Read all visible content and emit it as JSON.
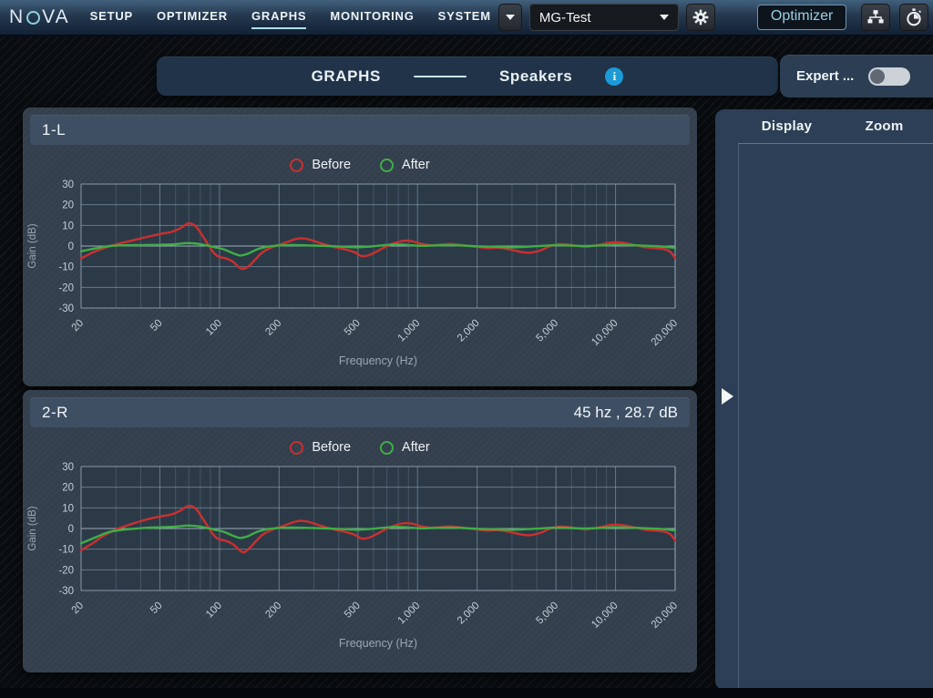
{
  "topbar": {
    "logo": {
      "name": "NOVA",
      "prefix": "N",
      "suffix": "VA"
    },
    "nav": [
      {
        "label": "SETUP",
        "active": false
      },
      {
        "label": "OPTIMIZER",
        "active": false
      },
      {
        "label": "GRAPHS",
        "active": true
      },
      {
        "label": "MONITORING",
        "active": false
      },
      {
        "label": "SYSTEM",
        "active": false
      }
    ],
    "preset_value": "MG-Test",
    "optimizer_label": "Optimizer",
    "info_glyph": "i"
  },
  "header": {
    "section_title": "GRAPHS",
    "subsection_title": "Speakers",
    "expert_label": "Expert ...",
    "expert_toggle_on": false
  },
  "sidebar": {
    "tabs": [
      {
        "label": "Display"
      },
      {
        "label": "Zoom"
      }
    ]
  },
  "panels": [
    {
      "title": "1-L",
      "readout": ""
    },
    {
      "title": "2-R",
      "readout": "45 hz , 28.7 dB"
    }
  ],
  "legend": [
    {
      "label": "Before",
      "color": "#cd2f2f"
    },
    {
      "label": "After",
      "color": "#3fae46"
    }
  ],
  "colors": {
    "accent_teal": "#9fd8e8",
    "before_red": "#cd2f2f",
    "after_green": "#3fae46",
    "info_blue": "#1d9bd8",
    "plot_bg": "#2c3a48",
    "grid_minor": "rgba(130,150,170,0.30)",
    "grid_major": "rgba(165,185,205,0.48)",
    "grid_zero": "rgba(200,215,230,0.72)",
    "tick_text": "#c3ced8",
    "axis_text": "#9aa7b3"
  },
  "chart_data": [
    {
      "type": "line",
      "title": "1-L",
      "xlabel": "Frequency (Hz)",
      "ylabel": "Gain (dB)",
      "x_scale": "log",
      "xlim": [
        20,
        20000
      ],
      "ylim": [
        -30,
        30
      ],
      "grid": true,
      "legend_position": "top",
      "y_ticks": [
        30,
        20,
        10,
        0,
        -10,
        -20,
        -30
      ],
      "x_ticks": [
        20,
        50,
        100,
        200,
        500,
        1000,
        2000,
        5000,
        10000,
        20000
      ],
      "x_tick_labels": [
        "20",
        "50",
        "100",
        "200",
        "500",
        "1,000",
        "2,000",
        "5,000",
        "10,000",
        "20,000"
      ],
      "series": [
        {
          "name": "Before",
          "color": "#cd2f2f",
          "points": [
            [
              20,
              -6
            ],
            [
              23,
              -3
            ],
            [
              26,
              -1
            ],
            [
              30,
              0.8
            ],
            [
              36,
              2.6
            ],
            [
              43,
              4.4
            ],
            [
              50,
              5.8
            ],
            [
              57,
              6.8
            ],
            [
              63,
              8.5
            ],
            [
              70,
              11
            ],
            [
              76,
              9.5
            ],
            [
              82,
              5
            ],
            [
              88,
              0.5
            ],
            [
              94,
              -3.5
            ],
            [
              100,
              -5.3
            ],
            [
              108,
              -6
            ],
            [
              117,
              -7.6
            ],
            [
              126,
              -10.4
            ],
            [
              133,
              -11
            ],
            [
              142,
              -9.4
            ],
            [
              152,
              -6.4
            ],
            [
              165,
              -3
            ],
            [
              180,
              -1
            ],
            [
              196,
              0.3
            ],
            [
              215,
              1.6
            ],
            [
              235,
              3
            ],
            [
              256,
              3.7
            ],
            [
              280,
              3.3
            ],
            [
              310,
              2
            ],
            [
              345,
              0.6
            ],
            [
              385,
              -0.6
            ],
            [
              430,
              -1.6
            ],
            [
              480,
              -3
            ],
            [
              520,
              -4.8
            ],
            [
              562,
              -4.6
            ],
            [
              612,
              -3
            ],
            [
              670,
              -1
            ],
            [
              732,
              0.8
            ],
            [
              800,
              2
            ],
            [
              870,
              2.6
            ],
            [
              950,
              2.2
            ],
            [
              1050,
              1
            ],
            [
              1160,
              0.4
            ],
            [
              1300,
              0.6
            ],
            [
              1450,
              1
            ],
            [
              1620,
              0.6
            ],
            [
              1800,
              0.1
            ],
            [
              2000,
              -0.4
            ],
            [
              2260,
              -1
            ],
            [
              2550,
              -0.8
            ],
            [
              2900,
              -1.6
            ],
            [
              3300,
              -2.8
            ],
            [
              3700,
              -3.2
            ],
            [
              4150,
              -2.2
            ],
            [
              4600,
              -0.3
            ],
            [
              5150,
              0.9
            ],
            [
              5750,
              0.7
            ],
            [
              6450,
              0
            ],
            [
              7200,
              -0.3
            ],
            [
              8100,
              0.4
            ],
            [
              9050,
              1.4
            ],
            [
              10000,
              1.9
            ],
            [
              11200,
              1.4
            ],
            [
              12600,
              0.4
            ],
            [
              14200,
              -0.6
            ],
            [
              16000,
              -1
            ],
            [
              17800,
              -1.6
            ],
            [
              19000,
              -3
            ],
            [
              20000,
              -5.8
            ]
          ]
        },
        {
          "name": "After",
          "color": "#3fae46",
          "points": [
            [
              20,
              -2.6
            ],
            [
              24,
              -1
            ],
            [
              28,
              0
            ],
            [
              34,
              0.4
            ],
            [
              42,
              0.5
            ],
            [
              50,
              0.6
            ],
            [
              60,
              0.9
            ],
            [
              68,
              1.4
            ],
            [
              76,
              1.2
            ],
            [
              85,
              0.4
            ],
            [
              95,
              -0.6
            ],
            [
              105,
              -1.6
            ],
            [
              118,
              -3.6
            ],
            [
              128,
              -4.6
            ],
            [
              140,
              -3.6
            ],
            [
              155,
              -1.6
            ],
            [
              172,
              -0.4
            ],
            [
              195,
              0.2
            ],
            [
              225,
              0.5
            ],
            [
              260,
              0.4
            ],
            [
              300,
              0.2
            ],
            [
              355,
              0
            ],
            [
              420,
              -0.3
            ],
            [
              500,
              -0.6
            ],
            [
              580,
              -0.2
            ],
            [
              680,
              0.4
            ],
            [
              780,
              0.8
            ],
            [
              900,
              0.5
            ],
            [
              1050,
              0.1
            ],
            [
              1250,
              0.3
            ],
            [
              1500,
              0.4
            ],
            [
              1800,
              0.1
            ],
            [
              2100,
              -0.2
            ],
            [
              2500,
              -0.4
            ],
            [
              3000,
              -0.6
            ],
            [
              3600,
              -0.3
            ],
            [
              4300,
              0.1
            ],
            [
              5000,
              0.4
            ],
            [
              6000,
              0.2
            ],
            [
              7200,
              0
            ],
            [
              8500,
              0.3
            ],
            [
              10000,
              0.6
            ],
            [
              12000,
              0.4
            ],
            [
              14500,
              0.1
            ],
            [
              17000,
              -0.2
            ],
            [
              20000,
              -0.9
            ]
          ]
        }
      ]
    },
    {
      "type": "line",
      "title": "2-R",
      "xlabel": "Frequency (Hz)",
      "ylabel": "Gain (dB)",
      "x_scale": "log",
      "xlim": [
        20,
        20000
      ],
      "ylim": [
        -30,
        30
      ],
      "grid": true,
      "legend_position": "top",
      "y_ticks": [
        30,
        20,
        10,
        0,
        -10,
        -20,
        -30
      ],
      "x_ticks": [
        20,
        50,
        100,
        200,
        500,
        1000,
        2000,
        5000,
        10000,
        20000
      ],
      "x_tick_labels": [
        "20",
        "50",
        "100",
        "200",
        "500",
        "1,000",
        "2,000",
        "5,000",
        "10,000",
        "20,000"
      ],
      "cursor_readout": "45 hz , 28.7 dB",
      "series": [
        {
          "name": "Before",
          "color": "#cd2f2f",
          "points": [
            [
              20,
              -10.5
            ],
            [
              23,
              -7
            ],
            [
              26,
              -3.5
            ],
            [
              30,
              -0.5
            ],
            [
              36,
              2.2
            ],
            [
              43,
              4.4
            ],
            [
              50,
              5.8
            ],
            [
              57,
              6.8
            ],
            [
              63,
              8.5
            ],
            [
              70,
              11
            ],
            [
              76,
              9.5
            ],
            [
              82,
              5
            ],
            [
              88,
              0.5
            ],
            [
              94,
              -3.5
            ],
            [
              100,
              -5.3
            ],
            [
              108,
              -6
            ],
            [
              117,
              -7.6
            ],
            [
              126,
              -10.4
            ],
            [
              133,
              -11.5
            ],
            [
              142,
              -9.4
            ],
            [
              152,
              -6.4
            ],
            [
              165,
              -3
            ],
            [
              180,
              -1
            ],
            [
              196,
              0.3
            ],
            [
              215,
              1.6
            ],
            [
              235,
              3
            ],
            [
              256,
              3.7
            ],
            [
              280,
              3.3
            ],
            [
              310,
              2
            ],
            [
              345,
              0.6
            ],
            [
              385,
              -0.6
            ],
            [
              430,
              -1.6
            ],
            [
              480,
              -3
            ],
            [
              520,
              -4.8
            ],
            [
              562,
              -4.6
            ],
            [
              612,
              -3
            ],
            [
              670,
              -1
            ],
            [
              732,
              0.8
            ],
            [
              800,
              2
            ],
            [
              870,
              2.6
            ],
            [
              950,
              2.2
            ],
            [
              1050,
              1
            ],
            [
              1160,
              0.4
            ],
            [
              1300,
              0.6
            ],
            [
              1450,
              1
            ],
            [
              1620,
              0.6
            ],
            [
              1800,
              0.1
            ],
            [
              2000,
              -0.4
            ],
            [
              2260,
              -1
            ],
            [
              2550,
              -0.8
            ],
            [
              2900,
              -1.6
            ],
            [
              3300,
              -2.8
            ],
            [
              3700,
              -3.2
            ],
            [
              4150,
              -2.2
            ],
            [
              4600,
              -0.3
            ],
            [
              5150,
              0.9
            ],
            [
              5750,
              0.7
            ],
            [
              6450,
              0
            ],
            [
              7200,
              -0.3
            ],
            [
              8100,
              0.4
            ],
            [
              9050,
              1.4
            ],
            [
              10000,
              1.9
            ],
            [
              11200,
              1.4
            ],
            [
              12600,
              0.4
            ],
            [
              14200,
              -0.6
            ],
            [
              16000,
              -1
            ],
            [
              17800,
              -1.6
            ],
            [
              19000,
              -3
            ],
            [
              20000,
              -5.8
            ]
          ]
        },
        {
          "name": "After",
          "color": "#3fae46",
          "points": [
            [
              20,
              -7.2
            ],
            [
              24,
              -4
            ],
            [
              28,
              -1.6
            ],
            [
              34,
              -0.4
            ],
            [
              42,
              0.3
            ],
            [
              50,
              0.6
            ],
            [
              60,
              0.9
            ],
            [
              68,
              1.4
            ],
            [
              76,
              1.2
            ],
            [
              85,
              0.4
            ],
            [
              95,
              -0.6
            ],
            [
              105,
              -1.6
            ],
            [
              118,
              -3.6
            ],
            [
              128,
              -4.6
            ],
            [
              140,
              -3.6
            ],
            [
              155,
              -1.6
            ],
            [
              172,
              -0.4
            ],
            [
              195,
              0.2
            ],
            [
              225,
              0.5
            ],
            [
              260,
              0.4
            ],
            [
              300,
              0.2
            ],
            [
              355,
              0
            ],
            [
              420,
              -0.3
            ],
            [
              500,
              -0.6
            ],
            [
              580,
              -0.2
            ],
            [
              680,
              0.4
            ],
            [
              780,
              0.8
            ],
            [
              900,
              0.5
            ],
            [
              1050,
              0.1
            ],
            [
              1250,
              0.3
            ],
            [
              1500,
              0.4
            ],
            [
              1800,
              0.1
            ],
            [
              2100,
              -0.2
            ],
            [
              2500,
              -0.4
            ],
            [
              3000,
              -0.6
            ],
            [
              3600,
              -0.3
            ],
            [
              4300,
              0.1
            ],
            [
              5000,
              0.4
            ],
            [
              6000,
              0.2
            ],
            [
              7200,
              0
            ],
            [
              8500,
              0.3
            ],
            [
              10000,
              0.6
            ],
            [
              12000,
              0.4
            ],
            [
              14500,
              0.1
            ],
            [
              17000,
              -0.2
            ],
            [
              20000,
              -0.9
            ]
          ]
        }
      ]
    }
  ]
}
